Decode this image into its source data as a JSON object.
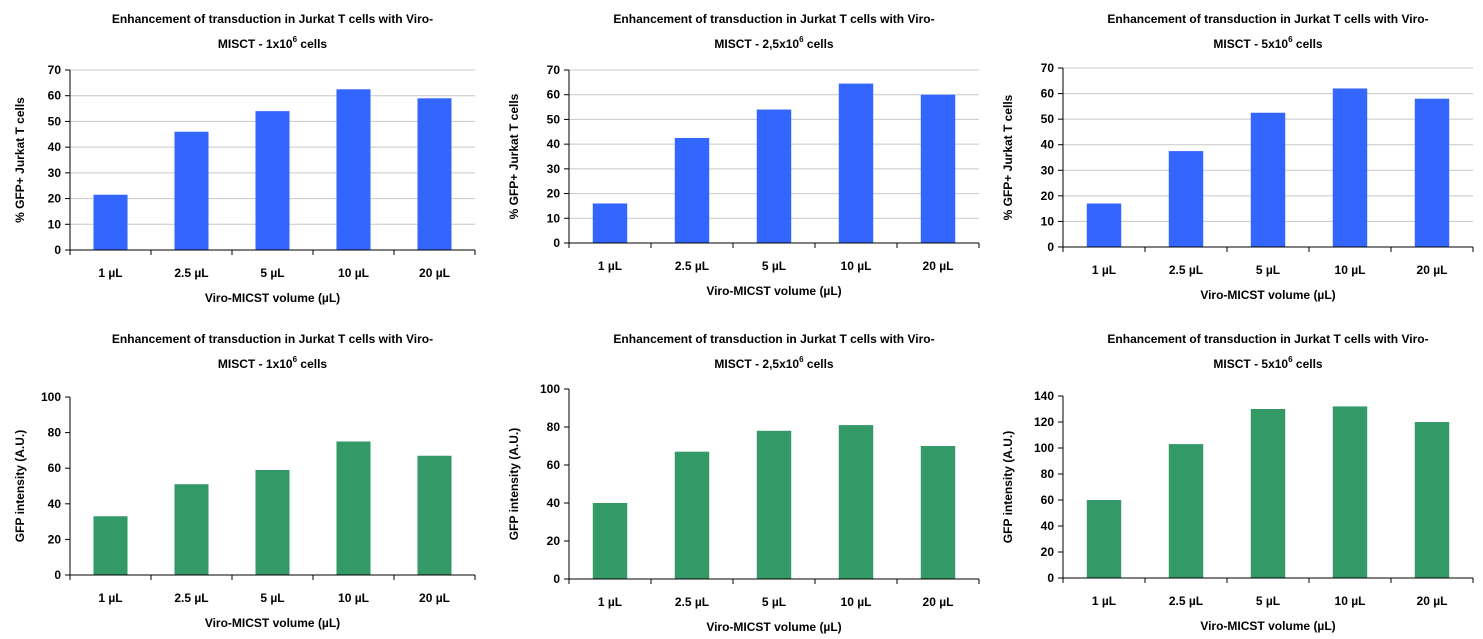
{
  "figure": {
    "chart_data": [
      {
        "type": "bar",
        "title_line1": "Enhancement of transduction in Jurkat T cells with Viro-",
        "title_line2_prefix": "MISCT - 1x10",
        "title_line2_sup": "6",
        "title_line2_suffix": " cells",
        "title": "Enhancement of transduction in Jurkat T cells with Viro-MISCT - 1x10^6 cells",
        "xlabel": "Viro-MICST volume (µL)",
        "ylabel": "% GFP+ Jurkat T cells",
        "categories": [
          "1 µL",
          "2.5 µL",
          "5 µL",
          "10 µL",
          "20 µL"
        ],
        "values": [
          21.5,
          46,
          54,
          62.5,
          59
        ],
        "ylim": [
          0,
          70
        ],
        "yticks": [
          0,
          10,
          20,
          30,
          40,
          50,
          60,
          70
        ],
        "grid": true,
        "color": "#3366ff"
      },
      {
        "type": "bar",
        "title_line1": "Enhancement of transduction in Jurkat T cells with Viro-",
        "title_line2_prefix": "MISCT - 2,5x10",
        "title_line2_sup": "6",
        "title_line2_suffix": " cells",
        "title": "Enhancement of transduction in Jurkat T cells with Viro-MISCT - 2,5x10^6 cells",
        "xlabel": "Viro-MICST volume (µL)",
        "ylabel": "% GFP+ Jurkat T cells",
        "categories": [
          "1 µL",
          "2.5 µL",
          "5 µL",
          "10 µL",
          "20 µL"
        ],
        "values": [
          16,
          42.5,
          54,
          64.5,
          60
        ],
        "ylim": [
          0,
          70
        ],
        "yticks": [
          0,
          10,
          20,
          30,
          40,
          50,
          60,
          70
        ],
        "grid": true,
        "color": "#3366ff"
      },
      {
        "type": "bar",
        "title_line1": "Enhancement of transduction in Jurkat T cells with Viro-",
        "title_line2_prefix": "MISCT - 5x10",
        "title_line2_sup": "6",
        "title_line2_suffix": " cells",
        "title": "Enhancement of transduction in Jurkat T cells with Viro-MISCT - 5x10^6 cells",
        "xlabel": "Viro-MICST volume (µL)",
        "ylabel": "% GFP+ Jurkat T cells",
        "categories": [
          "1 µL",
          "2.5 µL",
          "5 µL",
          "10 µL",
          "20 µL"
        ],
        "values": [
          17,
          37.5,
          52.5,
          62,
          58
        ],
        "ylim": [
          0,
          70
        ],
        "yticks": [
          0,
          10,
          20,
          30,
          40,
          50,
          60,
          70
        ],
        "grid": true,
        "color": "#3366ff"
      },
      {
        "type": "bar",
        "title_line1": "Enhancement of transduction in Jurkat T cells with Viro-",
        "title_line2_prefix": "MISCT - 1x10",
        "title_line2_sup": "6",
        "title_line2_suffix": " cells",
        "title": "Enhancement of transduction in Jurkat T cells with Viro-MISCT - 1x10^6 cells",
        "xlabel": "Viro-MICST volume (µL)",
        "ylabel": "GFP intensity (A.U.)",
        "categories": [
          "1 µL",
          "2.5 µL",
          "5 µL",
          "10 µL",
          "20 µL"
        ],
        "values": [
          33,
          51,
          59,
          75,
          67
        ],
        "ylim": [
          0,
          100
        ],
        "yticks": [
          0,
          20,
          40,
          60,
          80,
          100
        ],
        "grid": false,
        "color": "#339966"
      },
      {
        "type": "bar",
        "title_line1": "Enhancement of transduction in Jurkat T cells with Viro-",
        "title_line2_prefix": "MISCT - 2,5x10",
        "title_line2_sup": "6",
        "title_line2_suffix": " cells",
        "title": "Enhancement of transduction in Jurkat T cells with Viro-MISCT - 2,5x10^6 cells",
        "xlabel": "Viro-MICST volume (µL)",
        "ylabel": "GFP intensity (A.U.)",
        "categories": [
          "1 µL",
          "2.5 µL",
          "5 µL",
          "10 µL",
          "20 µL"
        ],
        "values": [
          40,
          67,
          78,
          81,
          70
        ],
        "ylim": [
          0,
          100
        ],
        "yticks": [
          0,
          20,
          40,
          60,
          80,
          100
        ],
        "grid": false,
        "color": "#339966"
      },
      {
        "type": "bar",
        "title_line1": "Enhancement of transduction in Jurkat T cells with Viro-",
        "title_line2_prefix": "MISCT - 5x10",
        "title_line2_sup": "6",
        "title_line2_suffix": " cells",
        "title": "Enhancement of transduction in Jurkat T cells with Viro-MISCT - 5x10^6 cells",
        "xlabel": "Viro-MICST volume (µL)",
        "ylabel": "GFP intensity (A.U.)",
        "categories": [
          "1 µL",
          "2.5 µL",
          "5 µL",
          "10 µL",
          "20 µL"
        ],
        "values": [
          60,
          103,
          130,
          132,
          120
        ],
        "ylim": [
          0,
          140
        ],
        "yticks": [
          0,
          20,
          40,
          60,
          80,
          100,
          120,
          140
        ],
        "grid": false,
        "color": "#339966"
      }
    ]
  }
}
